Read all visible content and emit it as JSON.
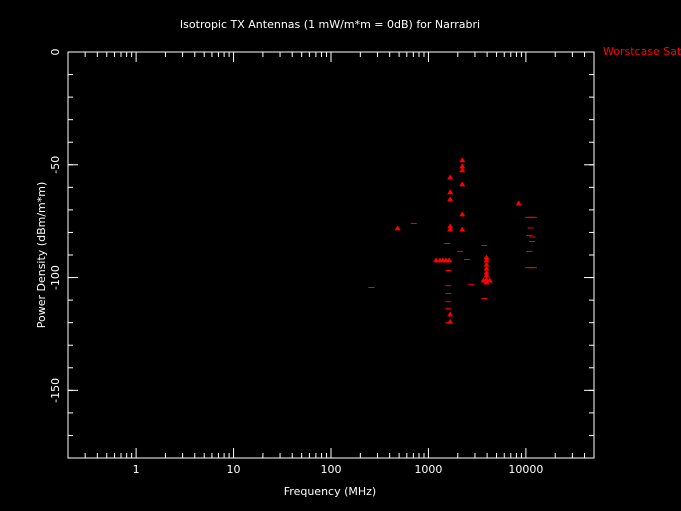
{
  "chart_data": {
    "type": "scatter",
    "title": "Isotropic TX Antennas (1 mW/m*m = 0dB) for Narrabri",
    "x_label": "Frequency (MHz)",
    "y_label": "Power Density (dBm/m*m)",
    "xlim": [
      0.2,
      50000
    ],
    "ylim": [
      -180,
      0
    ],
    "xticks": [
      1,
      10,
      100,
      1000,
      10000
    ],
    "yticks": [
      0,
      -50,
      -100,
      -150
    ],
    "xscale": "log",
    "minor_ticks": true,
    "legend": "right",
    "series": [
      {
        "name": "Worstcase Sats",
        "color": "#ff0000",
        "x": [
          483,
          1671,
          1671,
          1671,
          1671,
          1671,
          1196,
          1311,
          1409,
          1514,
          1628,
          1671,
          1671,
          2225,
          2225,
          2225,
          2225,
          2225,
          2225,
          8450,
          3945,
          3945,
          3945,
          3945,
          3945,
          3945,
          3945,
          3945,
          3664,
          4260,
          260,
          707,
          1560,
          1600,
          1600,
          1600,
          1600,
          1600,
          1600,
          2117,
          2497,
          2750,
          3740,
          3740,
          10500,
          11300,
          12100,
          10900,
          11200,
          10900,
          10500,
          11300,
          12100,
          11600,
          11600
        ],
        "values": [
          -78.2,
          -55.6,
          -62.2,
          -65.3,
          -77.3,
          -78.7,
          -92.4,
          -92.4,
          -92.4,
          -92.4,
          -92.4,
          -116.4,
          -119.6,
          -48,
          -50.7,
          -52.4,
          -58.7,
          -72,
          -78.7,
          -67.1,
          -91.1,
          -92.4,
          -94.2,
          -96,
          -97.8,
          -99.1,
          -100.9,
          -102.2,
          -101.3,
          -101.3,
          -104.4,
          -76,
          -84.9,
          -96.9,
          -103.6,
          -107.1,
          -110.7,
          -113.8,
          -120,
          -88.4,
          -92,
          -103,
          -85.8,
          -109.3,
          -73.3,
          -73.3,
          -73.3,
          -81.3,
          -78,
          -88.4,
          -95.6,
          -95.6,
          -95.6,
          -82,
          -84
        ],
        "markers": [
          "triangle",
          "triangle",
          "triangle",
          "triangle",
          "triangle",
          "triangle",
          "triangle",
          "triangle",
          "triangle",
          "triangle",
          "triangle",
          "triangle",
          "triangle",
          "triangle",
          "triangle",
          "triangle",
          "triangle",
          "triangle",
          "triangle",
          "triangle",
          "triangle",
          "triangle",
          "triangle",
          "triangle",
          "triangle",
          "triangle",
          "triangle",
          "triangle",
          "triangle",
          "triangle",
          "dash",
          "dash",
          "dash",
          "dash",
          "dash",
          "dash",
          "dash",
          "dash",
          "dash",
          "dash",
          "dash",
          "dash",
          "dash",
          "dash",
          "dash",
          "dash",
          "dash",
          "dash",
          "dash",
          "dash",
          "dash",
          "dash",
          "dash",
          "dash",
          "dash"
        ]
      }
    ]
  }
}
